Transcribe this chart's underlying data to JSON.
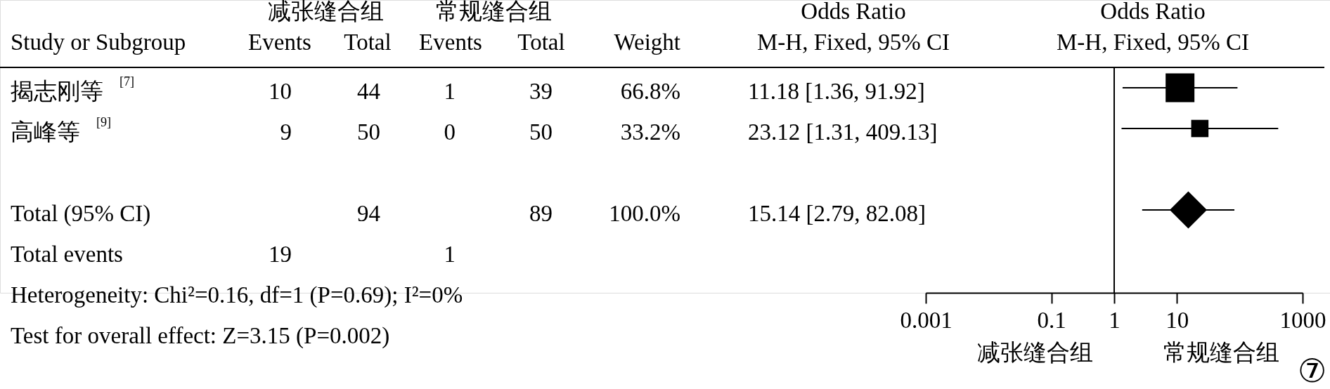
{
  "chart_data": [
    {
      "type": "other",
      "ylabel": "Study or Subgroup",
      "categories": [
        "Events",
        "Total",
        "Events",
        "Total",
        "Weight",
        "M-H, Fixed, 95% CI"
      ],
      "y_categories": [
        "揭志刚等$^{[7]}$",
        "高峰等$^{[9]}$",
        null,
        "Total (95% CI)",
        "Total events"
      ],
      "cell_labels": [
        [
          "10",
          "44",
          "1",
          "39",
          "66.8%",
          "11.18 [1.36, 91.92]"
        ],
        [
          "9",
          "50",
          "0",
          "50",
          "33.2%",
          "23.12 [1.31, 409.13]"
        ],
        [
          null,
          null,
          null,
          null,
          null,
          null
        ],
        [
          null,
          "94",
          null,
          "89",
          "100.0%",
          "15.14 [2.79, 82.08]"
        ],
        [
          "19",
          null,
          "1",
          null,
          null,
          null
        ]
      ],
      "annotations": [
        "减张缝合组",
        "常规缝合组",
        "Odds Ratio",
        "Heterogeneity: Chi²=0.16, df=1 (P=0.69); I²=0%",
        "Test for overall effect: Z=3.15 (P=0.002)"
      ]
    },
    {
      "type": "scatter",
      "title": "Odds Ratio",
      "subtitle": "M-H, Fixed, 95% CI",
      "orientation": "horizontal",
      "categories": [
        null,
        null,
        null,
        null,
        null
      ],
      "series": [
        {
          "type": "bubble",
          "color": "#000000",
          "marker": "square",
          "values": [
            11.18,
            23.12,
            null,
            null,
            null
          ],
          "errors": [
            [
              1.36,
              91.92
            ],
            [
              1.31,
              409.13
            ],
            null,
            null,
            null
          ],
          "sizes": [
            1,
            0.36,
            null,
            null,
            null
          ]
        },
        {
          "color": "#000000",
          "marker": "diamond",
          "values": [
            null,
            null,
            null,
            15.14,
            null
          ],
          "errors": [
            null,
            null,
            null,
            [
              2.79,
              82.08
            ],
            null
          ]
        }
      ],
      "log": "x",
      "xlim": [
        0.001,
        1000
      ],
      "xticks": [
        0.001,
        0.1,
        1,
        10,
        1000
      ],
      "ref_lines": [
        {
          "axis": "x",
          "value": 1
        }
      ],
      "annotations": [
        "减张缝合组",
        "常规缝合组",
        "⑦"
      ]
    }
  ]
}
